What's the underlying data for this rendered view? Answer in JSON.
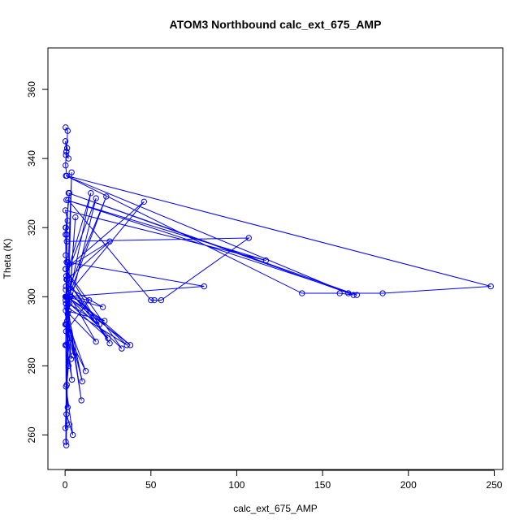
{
  "chart_data": {
    "type": "line",
    "title": "ATOM3 Northbound calc_ext_675_AMP",
    "xlabel": "calc_ext_675_AMP",
    "ylabel": "Theta (K)",
    "xlim": [
      -10,
      255
    ],
    "ylim": [
      250,
      372
    ],
    "xticks": [
      0,
      50,
      100,
      150,
      200,
      250
    ],
    "yticks": [
      260,
      280,
      300,
      320,
      340,
      360
    ],
    "grid": false,
    "color": "#0000ff",
    "markers": "open-circle",
    "series": [
      {
        "x": [
          0.3,
          1.5,
          0.8,
          0.2,
          1.2,
          0.5,
          2.0,
          0.7,
          0.3,
          1.0,
          248.0,
          185.0,
          165.0,
          0.5,
          138.0,
          160.0,
          168.0,
          2.0,
          170.0,
          0.8,
          117.0,
          0.2,
          1.5,
          0.5,
          2.5,
          0.3,
          1.0,
          107.0,
          56.0,
          52.0,
          50.0,
          1.8,
          0.4,
          0.9,
          81.0,
          0.5,
          46.0,
          0.3,
          26.0,
          1.2,
          0.6,
          24.0,
          0.2,
          2.0,
          18.0,
          0.7,
          15.0,
          1.0,
          36.0,
          0.4,
          38.0,
          1.5,
          33.0,
          0.3,
          26.0,
          0.8,
          20.0,
          2.5,
          25.0,
          0.5,
          22.0,
          1.0,
          23.0,
          0.4,
          18.0,
          3.0,
          14.0,
          0.6,
          12.0,
          1.2,
          10.0,
          0.3,
          9.5,
          2.0,
          6.0,
          0.8,
          4.0,
          0.5,
          3.5,
          1.5,
          5.0,
          0.2,
          3.0,
          0.9,
          2.0,
          1.0,
          1.5,
          0.5,
          4.5,
          0.8,
          2.5,
          0.2,
          3.8,
          1.2,
          1.0,
          0.3,
          0.6,
          0.5,
          1.5,
          0.4,
          2.2,
          0.7,
          0.3,
          1.0,
          0.2
        ],
        "y": [
          349.0,
          348.0,
          342.0,
          345.0,
          343.0,
          341.0,
          340.0,
          342.0,
          338.0,
          335.0,
          303.0,
          301.0,
          301.0,
          335.0,
          301.0,
          301.0,
          300.5,
          330.0,
          300.5,
          328.0,
          310.5,
          325.0,
          322.0,
          320.0,
          330.0,
          318.0,
          316.0,
          317.0,
          299.0,
          299.0,
          299.0,
          328.0,
          312.0,
          310.0,
          303.0,
          300.0,
          327.5,
          308.0,
          316.0,
          305.0,
          298.0,
          329.0,
          300.0,
          296.0,
          328.5,
          306.0,
          330.0,
          297.0,
          286.0,
          302.0,
          286.0,
          300.0,
          285.0,
          308.0,
          286.5,
          305.0,
          292.0,
          298.0,
          288.0,
          303.0,
          297.0,
          300.0,
          293.0,
          296.0,
          287.0,
          300.0,
          299.0,
          290.0,
          278.5,
          293.0,
          275.5,
          299.0,
          270.0,
          296.0,
          323.0,
          286.0,
          276.0,
          292.0,
          282.0,
          295.0,
          283.0,
          292.0,
          288.0,
          286.0,
          280.0,
          274.5,
          268.0,
          274.0,
          260.0,
          266.0,
          263.0,
          262.0,
          336.0,
          300.0,
          318.0,
          320.0,
          300.0,
          298.0,
          310.0,
          258.0,
          305.0,
          257.0,
          300.0,
          292.0,
          286.0
        ]
      }
    ]
  }
}
